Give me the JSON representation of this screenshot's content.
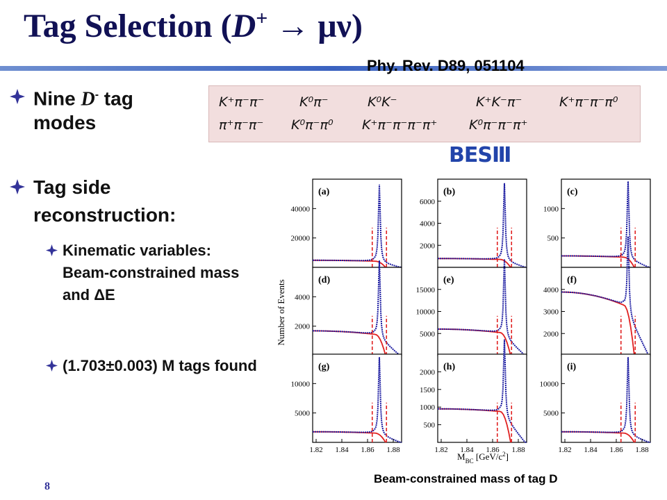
{
  "title": {
    "lead": "Tag Selection (",
    "particle": "D",
    "charge": "+",
    "tail": " → μν)"
  },
  "reference": "Phy. Rev. D89, 051104",
  "bullets": [
    {
      "lead": "Nine ",
      "particle": "D",
      "charge": "-",
      "tail": " tag modes"
    },
    {
      "text": "Tag side reconstruction:",
      "sub": [
        "Kinematic variables: Beam-constrained mass and ΔE",
        "(1.703±0.003) M tags found"
      ]
    }
  ],
  "tag_modes": [
    [
      "K⁺π⁻π⁻",
      "K⁰π⁻",
      "K⁰K⁻",
      "K⁺K⁻π⁻",
      "K⁺π⁻π⁻π⁰"
    ],
    [
      "π⁺π⁻π⁻",
      "K⁰π⁻π⁰",
      "K⁺π⁻π⁻π⁻π⁺",
      "K⁰π⁻π⁻π⁺"
    ]
  ],
  "logo": "BESⅢ",
  "figure": {
    "panels": [
      {
        "label": "(a)",
        "yticks": [
          20000,
          40000
        ]
      },
      {
        "label": "(b)",
        "yticks": [
          2000,
          4000,
          6000
        ]
      },
      {
        "label": "(c)",
        "yticks": [
          500,
          1000
        ]
      },
      {
        "label": "(d)",
        "yticks": [
          2000,
          4000
        ]
      },
      {
        "label": "(e)",
        "yticks": [
          5000,
          10000,
          15000
        ]
      },
      {
        "label": "(f)",
        "yticks": [
          2000,
          3000,
          4000
        ]
      },
      {
        "label": "(g)",
        "yticks": [
          5000,
          10000
        ]
      },
      {
        "label": "(h)",
        "yticks": [
          500,
          1000,
          1500,
          2000
        ]
      },
      {
        "label": "(i)",
        "yticks": [
          5000,
          10000
        ]
      }
    ],
    "xticks": [
      1.82,
      1.84,
      1.86,
      1.88
    ],
    "ylabel": "Number of Events",
    "xlabel": {
      "main": "M",
      "sub": "BC",
      "unit": " [GeV/c",
      "power": "2",
      "close": "]"
    }
  },
  "caption": "Beam-constrained mass of tag D",
  "page_number": "8"
}
